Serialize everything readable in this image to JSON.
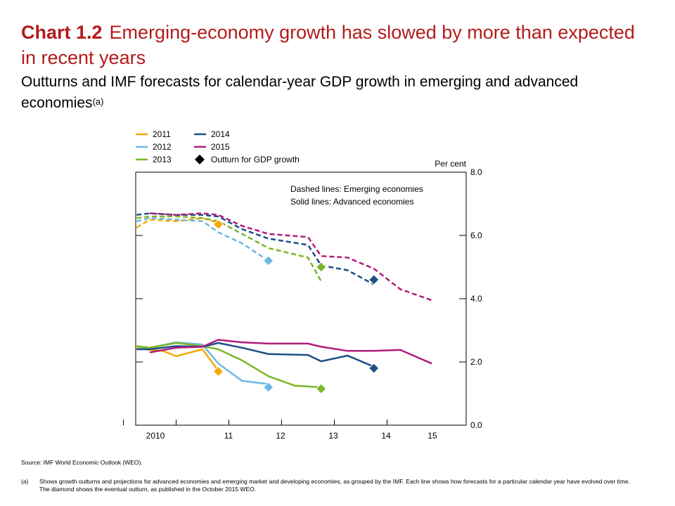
{
  "title": {
    "number": "Chart 1.2",
    "text": "Emerging-economy growth has slowed by more than expected in recent years",
    "subtitle": "Outturns and IMF forecasts for calendar-year GDP growth in emerging and advanced economies",
    "subtitle_note_marker": "(a)"
  },
  "legend": {
    "outturn_label": "Outturn for GDP growth"
  },
  "annotation": {
    "line1": "Dashed lines:  Emerging economies",
    "line2": "Solid lines:  Advanced economies"
  },
  "source": "Source:  IMF World Economic Outlook (WEO).",
  "footnote": {
    "marker": "(a)",
    "text": "Shows growth outturns and projections for advanced economies and emerging market and developing economies, as grouped by the IMF.  Each line shows how forecasts for a particular calendar year have evolved over time.  The diamond shows the eventual outturn, as published in the October 2015 WEO."
  },
  "chart_data": {
    "type": "line",
    "ylabel": "Per cent",
    "ylim": [
      0,
      8
    ],
    "yticks": [
      "0.0",
      "2.0",
      "4.0",
      "6.0",
      "8.0"
    ],
    "xlim": [
      2009.5,
      2015.75
    ],
    "xticks": [
      {
        "x": 2010,
        "label": "2010"
      },
      {
        "x": 2011,
        "label": "11"
      },
      {
        "x": 2012,
        "label": "12"
      },
      {
        "x": 2013,
        "label": "13"
      },
      {
        "x": 2014,
        "label": "14"
      },
      {
        "x": 2015,
        "label": "15"
      }
    ],
    "grid": false,
    "legend_position": "top-left",
    "series": [
      {
        "name": "2011",
        "color": "#f5a800",
        "emerging": [
          [
            2009.75,
            6.25
          ],
          [
            2010.0,
            6.5
          ],
          [
            2010.5,
            6.45
          ],
          [
            2011.0,
            6.55
          ],
          [
            2011.3,
            6.4
          ]
        ],
        "advanced": [
          [
            2009.75,
            2.45
          ],
          [
            2010.0,
            2.38
          ],
          [
            2010.25,
            2.35
          ],
          [
            2010.5,
            2.18
          ],
          [
            2011.0,
            2.4
          ],
          [
            2011.3,
            1.72
          ]
        ],
        "outturn": {
          "x": 2011.3,
          "emerging": 6.35,
          "advanced": 1.7
        }
      },
      {
        "name": "2012",
        "color": "#6cb8e6",
        "emerging": [
          [
            2009.75,
            6.45
          ],
          [
            2010.0,
            6.55
          ],
          [
            2010.5,
            6.5
          ],
          [
            2011.0,
            6.45
          ],
          [
            2011.3,
            6.1
          ],
          [
            2011.75,
            5.75
          ],
          [
            2012.25,
            5.2
          ]
        ],
        "advanced": [
          [
            2009.75,
            2.4
          ],
          [
            2010.0,
            2.45
          ],
          [
            2010.5,
            2.62
          ],
          [
            2011.0,
            2.55
          ],
          [
            2011.3,
            1.95
          ],
          [
            2011.75,
            1.4
          ],
          [
            2012.25,
            1.3
          ]
        ],
        "outturn": {
          "x": 2012.25,
          "emerging": 5.2,
          "advanced": 1.2
        }
      },
      {
        "name": "2013",
        "color": "#7ab629",
        "emerging": [
          [
            2009.75,
            6.55
          ],
          [
            2010.0,
            6.6
          ],
          [
            2010.5,
            6.6
          ],
          [
            2011.0,
            6.55
          ],
          [
            2011.3,
            6.45
          ],
          [
            2011.75,
            6.05
          ],
          [
            2012.25,
            5.6
          ],
          [
            2013.0,
            5.3
          ],
          [
            2013.25,
            4.55
          ]
        ],
        "advanced": [
          [
            2009.75,
            2.5
          ],
          [
            2010.0,
            2.45
          ],
          [
            2010.5,
            2.6
          ],
          [
            2011.0,
            2.5
          ],
          [
            2011.3,
            2.4
          ],
          [
            2011.75,
            2.05
          ],
          [
            2012.25,
            1.55
          ],
          [
            2012.75,
            1.25
          ],
          [
            2013.25,
            1.2
          ]
        ],
        "outturn": {
          "x": 2013.25,
          "emerging": 5.0,
          "advanced": 1.15
        }
      },
      {
        "name": "2014",
        "color": "#1d4f85",
        "emerging": [
          [
            2009.75,
            6.65
          ],
          [
            2010.0,
            6.7
          ],
          [
            2010.5,
            6.65
          ],
          [
            2011.0,
            6.65
          ],
          [
            2011.3,
            6.6
          ],
          [
            2011.75,
            6.2
          ],
          [
            2012.25,
            5.9
          ],
          [
            2013.0,
            5.7
          ],
          [
            2013.25,
            5.05
          ],
          [
            2013.75,
            4.9
          ],
          [
            2014.25,
            4.45
          ]
        ],
        "advanced": [
          [
            2009.75,
            2.4
          ],
          [
            2010.0,
            2.4
          ],
          [
            2010.5,
            2.5
          ],
          [
            2011.0,
            2.48
          ],
          [
            2011.3,
            2.6
          ],
          [
            2011.75,
            2.45
          ],
          [
            2012.25,
            2.25
          ],
          [
            2013.0,
            2.22
          ],
          [
            2013.25,
            2.02
          ],
          [
            2013.75,
            2.2
          ],
          [
            2014.25,
            1.85
          ]
        ],
        "outturn": {
          "x": 2014.25,
          "emerging": 4.6,
          "advanced": 1.8
        }
      },
      {
        "name": "2015",
        "color": "#b01d7b",
        "emerging": [
          [
            2010.0,
            6.7
          ],
          [
            2010.5,
            6.65
          ],
          [
            2011.0,
            6.7
          ],
          [
            2011.3,
            6.65
          ],
          [
            2011.75,
            6.3
          ],
          [
            2012.25,
            6.05
          ],
          [
            2013.0,
            5.95
          ],
          [
            2013.25,
            5.35
          ],
          [
            2013.75,
            5.3
          ],
          [
            2014.25,
            4.95
          ],
          [
            2014.75,
            4.3
          ],
          [
            2015.35,
            3.95
          ]
        ],
        "advanced": [
          [
            2010.0,
            2.3
          ],
          [
            2010.5,
            2.45
          ],
          [
            2011.0,
            2.48
          ],
          [
            2011.3,
            2.7
          ],
          [
            2011.75,
            2.62
          ],
          [
            2012.25,
            2.58
          ],
          [
            2013.0,
            2.58
          ],
          [
            2013.25,
            2.48
          ],
          [
            2013.75,
            2.35
          ],
          [
            2014.25,
            2.35
          ],
          [
            2014.75,
            2.38
          ],
          [
            2015.35,
            1.95
          ]
        ],
        "outturn": null
      }
    ]
  }
}
